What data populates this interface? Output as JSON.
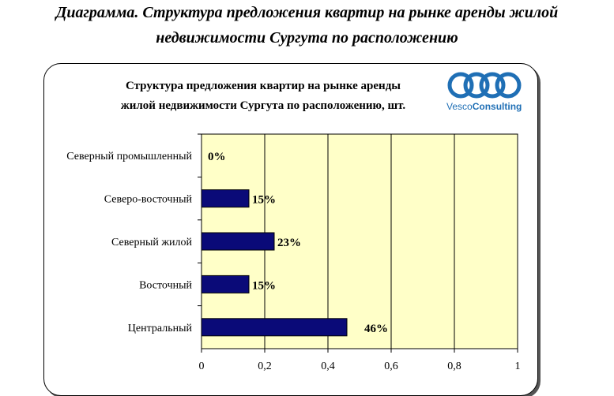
{
  "page_title_line1": "Диаграмма. Структура предложения квартир на рынке аренды жилой",
  "page_title_line2": "недвижимости Сургута по расположению",
  "logo": {
    "brand_a": "Vesco",
    "brand_b": "Consulting",
    "color": "#1f6fb5"
  },
  "chart_data": {
    "type": "bar",
    "orientation": "horizontal",
    "title_line1": "Структура предложения квартир на рынке аренды",
    "title_line2": "жилой недвижимости Сургута по расположению, шт.",
    "categories": [
      "Северный промышленный",
      "Северо-восточный",
      "Северный жилой",
      "Восточный",
      "Центральный"
    ],
    "values": [
      0,
      0.15,
      0.23,
      0.15,
      0.46
    ],
    "data_labels": [
      "0%",
      "15%",
      "23%",
      "15%",
      "46%"
    ],
    "xlim": [
      0,
      1
    ],
    "x_ticks": [
      "0",
      "0,2",
      "0,4",
      "0,6",
      "0,8",
      "1"
    ],
    "grid": true,
    "bar_color": "#0a0a78",
    "plot_background": "#ffffc8"
  }
}
